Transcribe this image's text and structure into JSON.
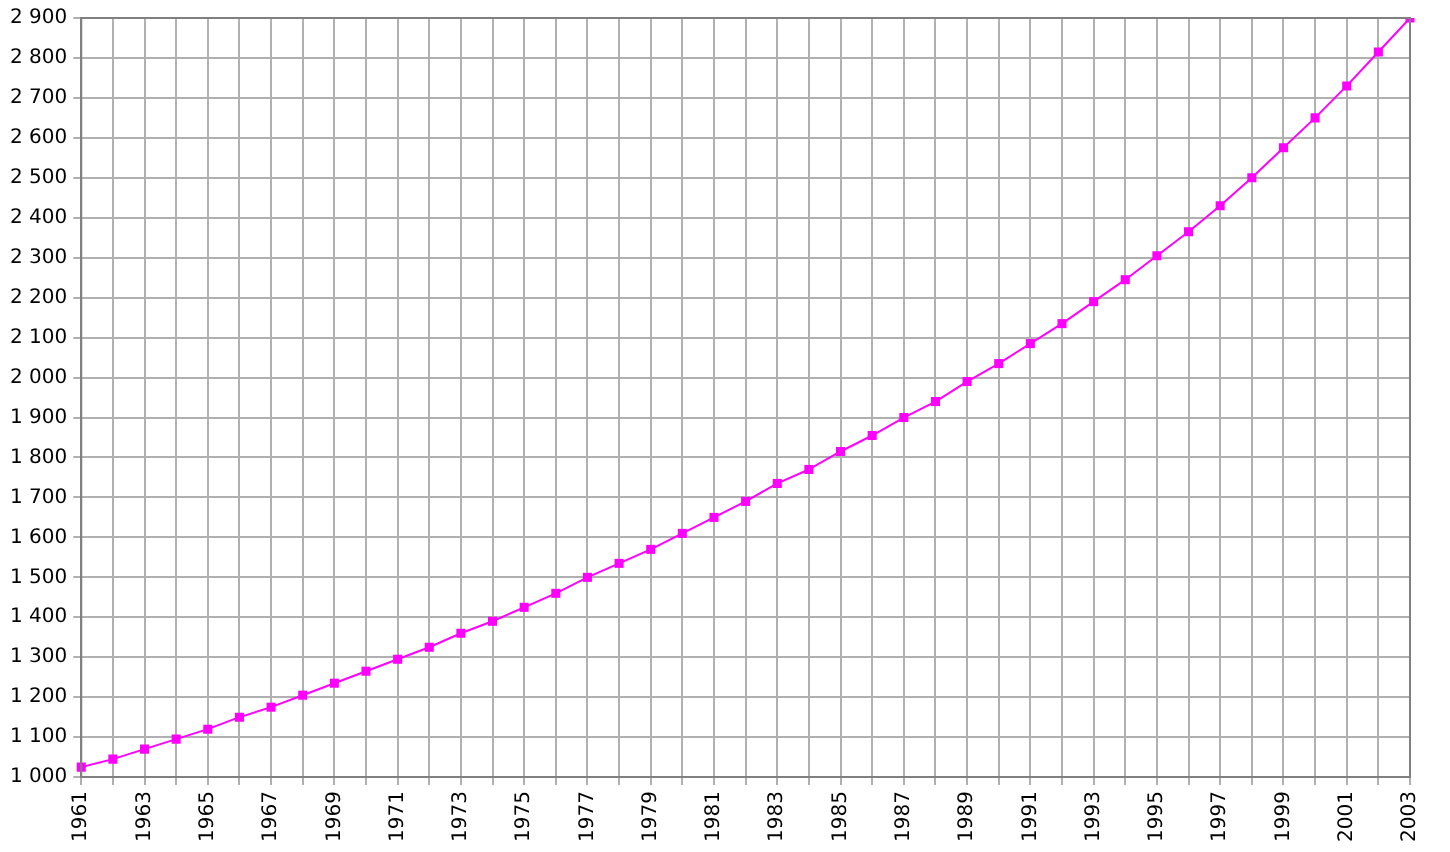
{
  "chart_data": {
    "type": "line",
    "categories": [
      "1961",
      null,
      "1963",
      null,
      "1965",
      null,
      "1967",
      null,
      "1969",
      null,
      "1971",
      null,
      "1973",
      null,
      "1975",
      null,
      "1977",
      null,
      "1979",
      null,
      "1981",
      null,
      "1983",
      null,
      "1985",
      null,
      "1987",
      null,
      "1989",
      null,
      "1991",
      null,
      "1993",
      null,
      "1995",
      null,
      "1997",
      null,
      "1999",
      null,
      "2001",
      null,
      "2003"
    ],
    "series": [
      {
        "color": "#ff00ff",
        "values": [
          1025,
          1045,
          1070,
          1095,
          1120,
          1150,
          1175,
          1205,
          1235,
          1265,
          1295,
          1325,
          1360,
          1390,
          1425,
          1460,
          1500,
          1535,
          1570,
          1610,
          1650,
          1690,
          1735,
          1770,
          1815,
          1855,
          1900,
          1940,
          1990,
          2035,
          2085,
          2135,
          2190,
          2245,
          2305,
          2365,
          2430,
          2500,
          2575,
          2650,
          2730,
          2815,
          2900
        ]
      }
    ],
    "ylim": [
      1000,
      2900
    ],
    "yticks": [
      {
        "value": 1000,
        "label": "1 000"
      },
      {
        "value": 1100,
        "label": "1 100"
      },
      {
        "value": 1200,
        "label": "1 200"
      },
      {
        "value": 1300,
        "label": "1 300"
      },
      {
        "value": 1400,
        "label": "1 400"
      },
      {
        "value": 1500,
        "label": "1 500"
      },
      {
        "value": 1600,
        "label": "1 600"
      },
      {
        "value": 1700,
        "label": "1 700"
      },
      {
        "value": 1800,
        "label": "1 800"
      },
      {
        "value": 1900,
        "label": "1 900"
      },
      {
        "value": 2000,
        "label": "2 000"
      },
      {
        "value": 2100,
        "label": "2 100"
      },
      {
        "value": 2200,
        "label": "2 200"
      },
      {
        "value": 2300,
        "label": "2 300"
      },
      {
        "value": 2400,
        "label": "2 400"
      },
      {
        "value": 2500,
        "label": "2 500"
      },
      {
        "value": 2600,
        "label": "2 600"
      },
      {
        "value": 2700,
        "label": "2 700"
      },
      {
        "value": 2800,
        "label": "2 800"
      },
      {
        "value": 2900,
        "label": "2 900"
      }
    ],
    "grid": true,
    "legend": false,
    "marker": "square",
    "line_style": "solid"
  }
}
